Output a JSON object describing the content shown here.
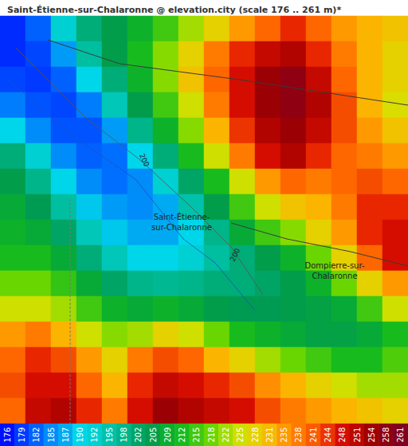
{
  "chart_data": {
    "type": "heatmap",
    "title": "Saint-Étienne-sur-Chalaronne @ elevation.city (scale 176 .. 261 m)*",
    "cells": [
      [
        178,
        182,
        192,
        200,
        205,
        210,
        215,
        222,
        228,
        235,
        240,
        245,
        240,
        235,
        232,
        230
      ],
      [
        178,
        180,
        186,
        196,
        205,
        212,
        220,
        228,
        238,
        245,
        250,
        252,
        245,
        238,
        232,
        228
      ],
      [
        180,
        179,
        182,
        190,
        200,
        210,
        220,
        230,
        240,
        248,
        255,
        258,
        250,
        240,
        232,
        228
      ],
      [
        184,
        181,
        180,
        184,
        194,
        205,
        215,
        225,
        238,
        248,
        255,
        258,
        252,
        242,
        232,
        226
      ],
      [
        190,
        185,
        181,
        181,
        186,
        198,
        210,
        220,
        232,
        244,
        252,
        255,
        250,
        242,
        235,
        230
      ],
      [
        200,
        192,
        185,
        182,
        183,
        190,
        200,
        212,
        225,
        238,
        248,
        252,
        245,
        240,
        238,
        235
      ],
      [
        205,
        198,
        190,
        185,
        183,
        185,
        192,
        202,
        212,
        225,
        235,
        240,
        238,
        240,
        242,
        240
      ],
      [
        208,
        204,
        196,
        189,
        186,
        185,
        187,
        195,
        205,
        215,
        225,
        230,
        232,
        238,
        245,
        245
      ],
      [
        210,
        208,
        202,
        194,
        189,
        187,
        187,
        190,
        198,
        208,
        215,
        220,
        228,
        235,
        245,
        248
      ],
      [
        212,
        212,
        208,
        200,
        194,
        190,
        190,
        192,
        196,
        200,
        205,
        210,
        218,
        228,
        240,
        248
      ],
      [
        218,
        218,
        214,
        208,
        202,
        198,
        197,
        198,
        200,
        200,
        202,
        205,
        210,
        218,
        228,
        235
      ],
      [
        225,
        225,
        222,
        215,
        210,
        208,
        210,
        208,
        205,
        204,
        204,
        205,
        206,
        208,
        215,
        225
      ],
      [
        235,
        238,
        232,
        225,
        220,
        222,
        228,
        225,
        218,
        212,
        210,
        208,
        206,
        206,
        208,
        212
      ],
      [
        240,
        245,
        242,
        235,
        228,
        238,
        242,
        240,
        232,
        228,
        222,
        218,
        215,
        212,
        212,
        216
      ],
      [
        242,
        248,
        248,
        240,
        232,
        245,
        250,
        248,
        245,
        242,
        236,
        232,
        228,
        225,
        222,
        222
      ],
      [
        240,
        250,
        252,
        245,
        238,
        248,
        255,
        252,
        250,
        248,
        242,
        238,
        235,
        232,
        230,
        228
      ]
    ],
    "colorbar": {
      "range": [
        176,
        261
      ],
      "ticks": [
        176,
        179,
        182,
        185,
        187,
        190,
        192,
        195,
        198,
        202,
        205,
        209,
        212,
        215,
        218,
        222,
        225,
        228,
        231,
        235,
        238,
        241,
        244,
        248,
        251,
        254,
        258,
        261
      ]
    },
    "annotations": [
      {
        "lines": [
          "Saint-Étienne-",
          "sur-Chalaronne"
        ]
      },
      {
        "lines": [
          "Dompierre-sur-",
          "Chalaronne"
        ]
      },
      {
        "lines": [
          "200"
        ]
      },
      {
        "lines": [
          "200"
        ]
      }
    ],
    "tick_labels": false,
    "data_labels": true
  }
}
